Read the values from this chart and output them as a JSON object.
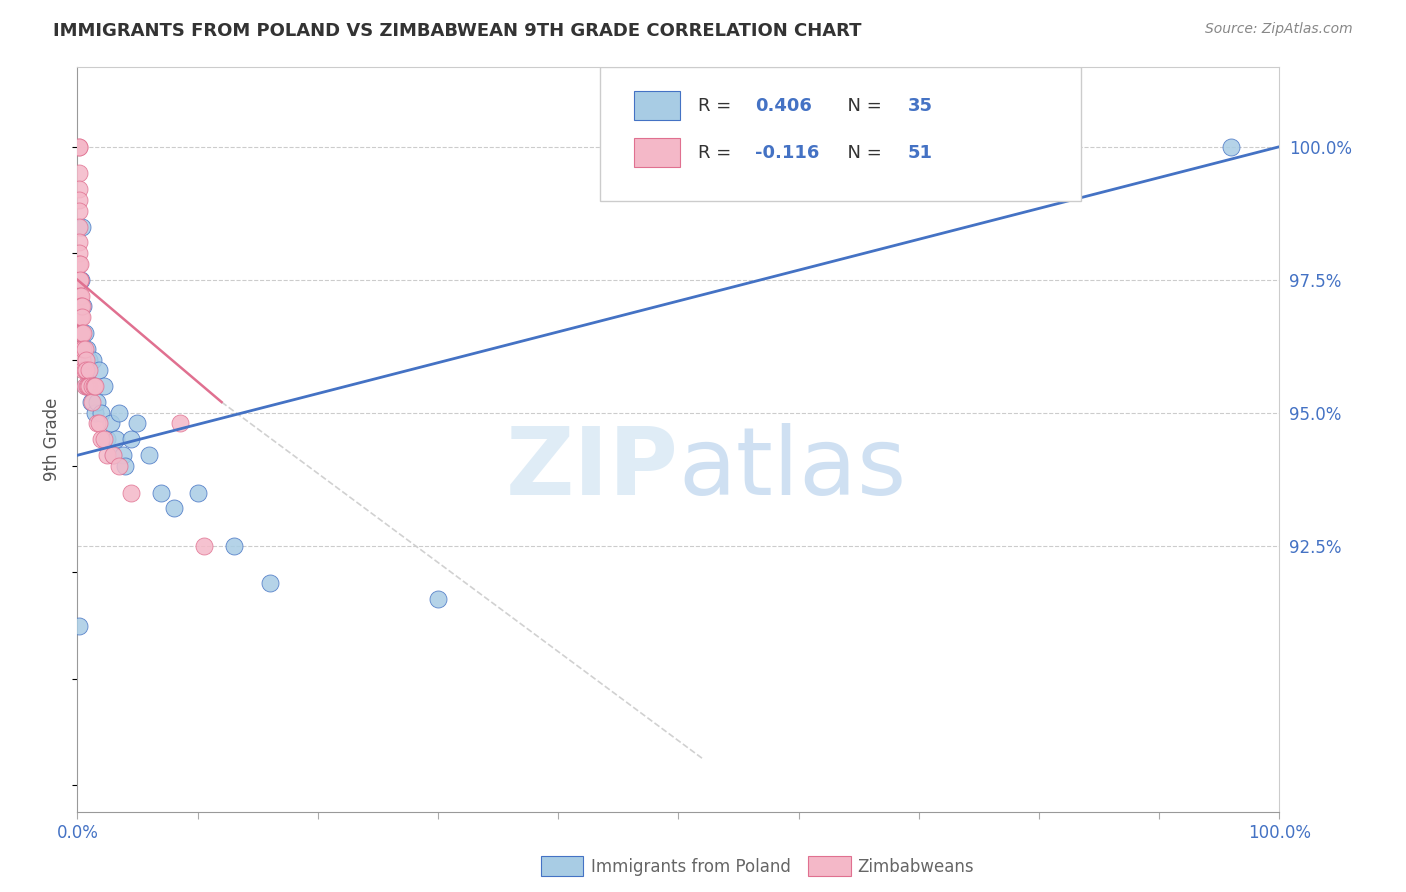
{
  "title": "IMMIGRANTS FROM POLAND VS ZIMBABWEAN 9TH GRADE CORRELATION CHART",
  "source": "Source: ZipAtlas.com",
  "ylabel": "9th Grade",
  "right_yticks": [
    92.5,
    95.0,
    97.5,
    100.0
  ],
  "right_ytick_labels": [
    "92.5%",
    "95.0%",
    "97.5%",
    "100.0%"
  ],
  "color_blue": "#a8cce4",
  "color_pink": "#f4b8c8",
  "color_line_blue": "#4472c4",
  "color_line_pink": "#e07090",
  "watermark_text": "ZIPatlas",
  "blue_scatter_x": [
    0.001,
    0.003,
    0.004,
    0.005,
    0.006,
    0.007,
    0.008,
    0.009,
    0.01,
    0.011,
    0.012,
    0.013,
    0.014,
    0.015,
    0.016,
    0.018,
    0.02,
    0.022,
    0.025,
    0.028,
    0.03,
    0.032,
    0.035,
    0.038,
    0.04,
    0.045,
    0.05,
    0.06,
    0.07,
    0.08,
    0.1,
    0.13,
    0.16,
    0.3,
    0.96
  ],
  "blue_scatter_y": [
    91.0,
    97.5,
    98.5,
    97.0,
    96.5,
    95.5,
    96.2,
    95.8,
    96.0,
    95.2,
    95.5,
    96.0,
    95.5,
    95.0,
    95.2,
    95.8,
    95.0,
    95.5,
    94.5,
    94.8,
    94.2,
    94.5,
    95.0,
    94.2,
    94.0,
    94.5,
    94.8,
    94.2,
    93.5,
    93.2,
    93.5,
    92.5,
    91.8,
    91.5,
    100.0
  ],
  "pink_scatter_x": [
    0.001,
    0.001,
    0.001,
    0.001,
    0.001,
    0.001,
    0.001,
    0.001,
    0.001,
    0.001,
    0.002,
    0.002,
    0.002,
    0.002,
    0.002,
    0.002,
    0.003,
    0.003,
    0.003,
    0.003,
    0.003,
    0.004,
    0.004,
    0.004,
    0.004,
    0.005,
    0.005,
    0.005,
    0.006,
    0.006,
    0.006,
    0.007,
    0.007,
    0.008,
    0.009,
    0.01,
    0.01,
    0.012,
    0.012,
    0.014,
    0.015,
    0.016,
    0.018,
    0.02,
    0.022,
    0.025,
    0.03,
    0.035,
    0.045,
    0.085,
    0.105
  ],
  "pink_scatter_y": [
    100.0,
    100.0,
    99.5,
    99.2,
    99.0,
    98.8,
    98.5,
    98.2,
    98.0,
    97.8,
    97.5,
    97.8,
    97.5,
    97.2,
    97.0,
    96.8,
    97.2,
    97.0,
    96.8,
    96.5,
    96.2,
    97.0,
    96.8,
    96.5,
    96.0,
    96.5,
    96.2,
    95.8,
    96.2,
    95.8,
    95.5,
    96.0,
    95.8,
    95.5,
    95.5,
    95.8,
    95.5,
    95.5,
    95.2,
    95.5,
    95.5,
    94.8,
    94.8,
    94.5,
    94.5,
    94.2,
    94.2,
    94.0,
    93.5,
    94.8,
    92.5
  ],
  "blue_line_x": [
    0.0,
    1.0
  ],
  "blue_line_y": [
    94.2,
    100.0
  ],
  "pink_line_x": [
    0.0,
    0.12
  ],
  "pink_line_y": [
    97.5,
    95.2
  ],
  "dashed_line_x": [
    0.12,
    0.52
  ],
  "dashed_line_y": [
    95.2,
    88.5
  ],
  "xlim": [
    0.0,
    1.0
  ],
  "ylim": [
    87.5,
    101.5
  ],
  "xtick_positions": [
    0.0,
    0.1,
    0.2,
    0.3,
    0.4,
    0.5,
    0.6,
    0.7,
    0.8,
    0.9,
    1.0
  ],
  "grid_yticks": [
    92.5,
    95.0,
    97.5,
    100.0
  ]
}
